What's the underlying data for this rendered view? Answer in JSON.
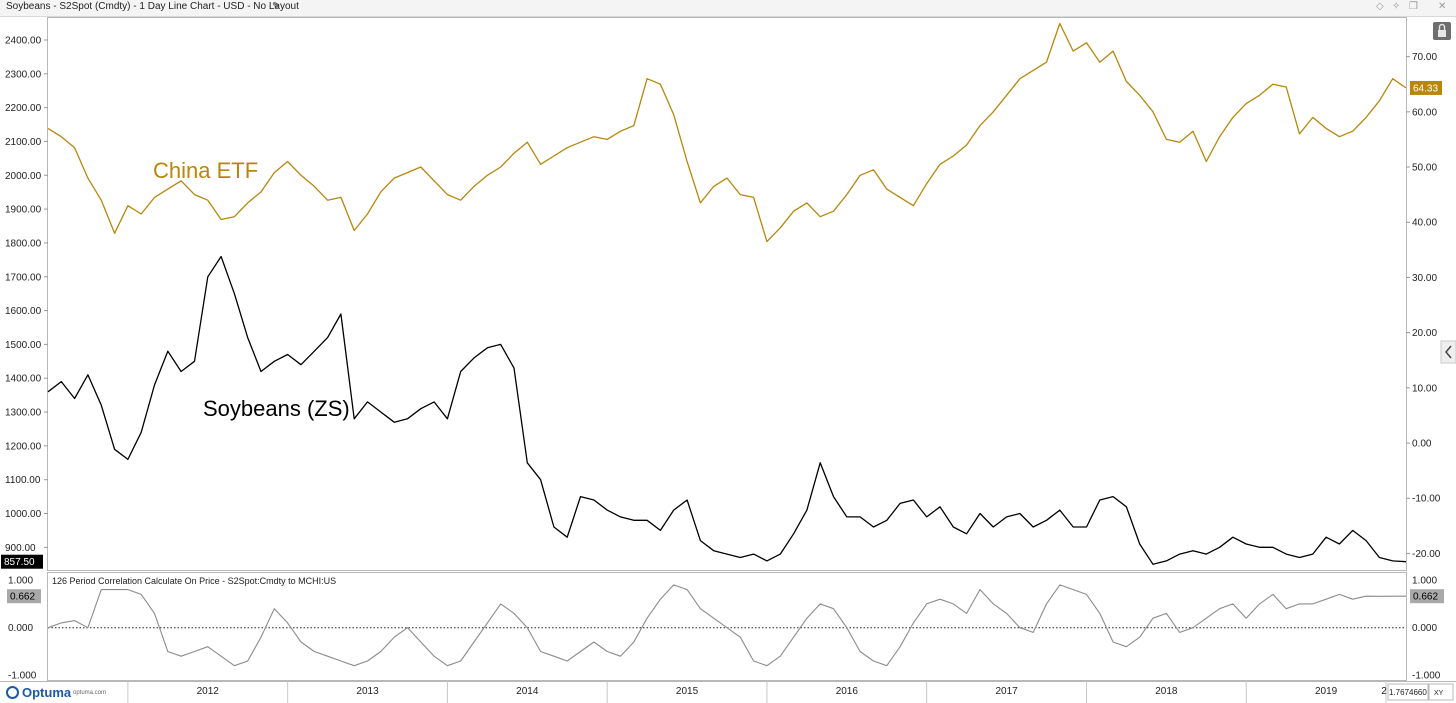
{
  "window": {
    "title": "Soybeans - S2Spot (Cmdty) - 1 Day Line Chart - USD - No Layout"
  },
  "icons": {
    "edit": "pencil-icon",
    "controls": [
      "diamond-icon",
      "pin-icon",
      "restore-icon",
      "close-icon"
    ],
    "lock": "lock-icon",
    "collapse": "chevron-left-icon"
  },
  "brand": {
    "name": "Optuma",
    "url": "optuma.com"
  },
  "colors": {
    "china": "#b8860b",
    "soy": "#000000",
    "corr": "#8c8c8c",
    "corr_badge": "#a9a9a9"
  },
  "chart_data": [
    {
      "type": "line",
      "annotations": [
        "China ETF",
        "Soybeans (ZS)"
      ],
      "x_ticks": [
        "2012",
        "2013",
        "2014",
        "2015",
        "2016",
        "2017",
        "2018",
        "2019",
        "2"
      ],
      "left_axis": {
        "ticks": [
          "900.00",
          "1000.00",
          "1100.00",
          "1200.00",
          "1300.00",
          "1400.00",
          "1500.00",
          "1600.00",
          "1700.00",
          "1800.00",
          "1900.00",
          "2000.00",
          "2100.00",
          "2200.00",
          "2300.00",
          "2400.00"
        ],
        "range": [
          833,
          2465
        ]
      },
      "right_axis": {
        "ticks": [
          "-20.00",
          "-10.00",
          "0.00",
          "10.00",
          "20.00",
          "30.00",
          "40.00",
          "50.00",
          "60.00",
          "70.00"
        ],
        "range": [
          -23.0,
          77.0
        ]
      },
      "series": [
        {
          "name": "China ETF",
          "axis": "right",
          "last_value": "64.33",
          "x": [
            "2011-07",
            "2011-08",
            "2011-09",
            "2011-10",
            "2011-11",
            "2011-12",
            "2012-01",
            "2012-02",
            "2012-03",
            "2012-04",
            "2012-05",
            "2012-06",
            "2012-07",
            "2012-08",
            "2012-09",
            "2012-10",
            "2012-11",
            "2012-12",
            "2013-01",
            "2013-02",
            "2013-03",
            "2013-04",
            "2013-05",
            "2013-06",
            "2013-07",
            "2013-08",
            "2013-09",
            "2013-10",
            "2013-11",
            "2013-12",
            "2014-01",
            "2014-02",
            "2014-03",
            "2014-04",
            "2014-05",
            "2014-06",
            "2014-07",
            "2014-08",
            "2014-09",
            "2014-10",
            "2014-11",
            "2014-12",
            "2015-01",
            "2015-02",
            "2015-03",
            "2015-04",
            "2015-05",
            "2015-06",
            "2015-07",
            "2015-08",
            "2015-09",
            "2015-10",
            "2015-11",
            "2015-12",
            "2016-01",
            "2016-02",
            "2016-03",
            "2016-04",
            "2016-05",
            "2016-06",
            "2016-07",
            "2016-08",
            "2016-09",
            "2016-10",
            "2016-11",
            "2016-12",
            "2017-01",
            "2017-02",
            "2017-03",
            "2017-04",
            "2017-05",
            "2017-06",
            "2017-07",
            "2017-08",
            "2017-09",
            "2017-10",
            "2017-11",
            "2017-12",
            "2018-01",
            "2018-02",
            "2018-03",
            "2018-04",
            "2018-05",
            "2018-06",
            "2018-07",
            "2018-08",
            "2018-09",
            "2018-10",
            "2018-11",
            "2018-12",
            "2019-01",
            "2019-02",
            "2019-03",
            "2019-04",
            "2019-05",
            "2019-06",
            "2019-07",
            "2019-08",
            "2019-09",
            "2019-10",
            "2019-11",
            "2019-12",
            "2020-01"
          ],
          "values": [
            57.0,
            55.5,
            53.5,
            48.0,
            44.0,
            38.0,
            43.0,
            41.5,
            44.5,
            46.0,
            47.5,
            45.0,
            44.0,
            40.5,
            41.0,
            43.5,
            45.5,
            49.0,
            51.0,
            48.5,
            46.5,
            44.0,
            44.5,
            38.5,
            41.5,
            45.5,
            48.0,
            49.0,
            50.0,
            47.5,
            45.0,
            44.0,
            46.5,
            48.5,
            50.0,
            52.5,
            54.5,
            50.5,
            52.0,
            53.5,
            54.5,
            55.5,
            55.0,
            56.5,
            57.5,
            66.0,
            65.0,
            59.5,
            51.0,
            43.5,
            46.5,
            48.0,
            45.0,
            44.5,
            36.5,
            39.0,
            42.0,
            43.5,
            41.0,
            42.0,
            45.0,
            48.5,
            49.5,
            46.0,
            44.5,
            43.0,
            47.0,
            50.5,
            52.0,
            54.0,
            57.5,
            60.0,
            63.0,
            66.0,
            67.5,
            69.0,
            76.0,
            71.0,
            72.5,
            69.0,
            71.0,
            65.5,
            63.0,
            60.0,
            55.0,
            54.5,
            56.5,
            51.0,
            55.5,
            59.0,
            61.5,
            63.0,
            65.0,
            64.5,
            56.0,
            59.0,
            57.0,
            55.5,
            56.5,
            59.0,
            62.0,
            66.0,
            64.33
          ]
        },
        {
          "name": "Soybeans (ZS)",
          "axis": "left",
          "last_value": "857.50",
          "x": [
            "2011-07",
            "2011-08",
            "2011-09",
            "2011-10",
            "2011-11",
            "2011-12",
            "2012-01",
            "2012-02",
            "2012-03",
            "2012-04",
            "2012-05",
            "2012-06",
            "2012-07",
            "2012-08",
            "2012-09",
            "2012-10",
            "2012-11",
            "2012-12",
            "2013-01",
            "2013-02",
            "2013-03",
            "2013-04",
            "2013-05",
            "2013-06",
            "2013-07",
            "2013-08",
            "2013-09",
            "2013-10",
            "2013-11",
            "2013-12",
            "2014-01",
            "2014-02",
            "2014-03",
            "2014-04",
            "2014-05",
            "2014-06",
            "2014-07",
            "2014-08",
            "2014-09",
            "2014-10",
            "2014-11",
            "2014-12",
            "2015-01",
            "2015-02",
            "2015-03",
            "2015-04",
            "2015-05",
            "2015-06",
            "2015-07",
            "2015-08",
            "2015-09",
            "2015-10",
            "2015-11",
            "2015-12",
            "2016-01",
            "2016-02",
            "2016-03",
            "2016-04",
            "2016-05",
            "2016-06",
            "2016-07",
            "2016-08",
            "2016-09",
            "2016-10",
            "2016-11",
            "2016-12",
            "2017-01",
            "2017-02",
            "2017-03",
            "2017-04",
            "2017-05",
            "2017-06",
            "2017-07",
            "2017-08",
            "2017-09",
            "2017-10",
            "2017-11",
            "2017-12",
            "2018-01",
            "2018-02",
            "2018-03",
            "2018-04",
            "2018-05",
            "2018-06",
            "2018-07",
            "2018-08",
            "2018-09",
            "2018-10",
            "2018-11",
            "2018-12",
            "2019-01",
            "2019-02",
            "2019-03",
            "2019-04",
            "2019-05",
            "2019-06",
            "2019-07",
            "2019-08",
            "2019-09",
            "2019-10",
            "2019-11",
            "2019-12",
            "2020-01"
          ],
          "values": [
            1360,
            1390,
            1340,
            1410,
            1320,
            1190,
            1160,
            1240,
            1380,
            1480,
            1420,
            1450,
            1700,
            1760,
            1650,
            1520,
            1420,
            1450,
            1470,
            1440,
            1480,
            1520,
            1590,
            1280,
            1330,
            1300,
            1270,
            1280,
            1310,
            1330,
            1280,
            1420,
            1460,
            1490,
            1500,
            1430,
            1150,
            1100,
            960,
            930,
            1050,
            1040,
            1010,
            990,
            980,
            980,
            950,
            1010,
            1040,
            920,
            890,
            880,
            870,
            880,
            860,
            880,
            940,
            1010,
            1150,
            1050,
            990,
            990,
            960,
            980,
            1030,
            1040,
            990,
            1020,
            960,
            940,
            1000,
            960,
            990,
            1000,
            960,
            980,
            1010,
            960,
            960,
            1040,
            1050,
            1020,
            910,
            850,
            860,
            880,
            890,
            880,
            900,
            930,
            910,
            900,
            900,
            880,
            870,
            880,
            930,
            910,
            950,
            920,
            870,
            860,
            857.5
          ]
        }
      ]
    },
    {
      "type": "line",
      "title": "126 Period Correlation Calculate On Price - S2Spot:Cmdty to MCHI:US",
      "x_ticks": [
        "2012",
        "2013",
        "2014",
        "2015",
        "2016",
        "2017",
        "2018",
        "2019",
        "2"
      ],
      "y_ticks": [
        "1.000",
        "0.000",
        "-1.000"
      ],
      "ylim": [
        -1.1,
        1.15
      ],
      "zero_line": "dotted",
      "series": [
        {
          "name": "Correlation",
          "last_value": "0.662",
          "x": [
            "2011-07",
            "2011-08",
            "2011-09",
            "2011-10",
            "2011-11",
            "2011-12",
            "2012-01",
            "2012-02",
            "2012-03",
            "2012-04",
            "2012-05",
            "2012-06",
            "2012-07",
            "2012-08",
            "2012-09",
            "2012-10",
            "2012-11",
            "2012-12",
            "2013-01",
            "2013-02",
            "2013-03",
            "2013-04",
            "2013-05",
            "2013-06",
            "2013-07",
            "2013-08",
            "2013-09",
            "2013-10",
            "2013-11",
            "2013-12",
            "2014-01",
            "2014-02",
            "2014-03",
            "2014-04",
            "2014-05",
            "2014-06",
            "2014-07",
            "2014-08",
            "2014-09",
            "2014-10",
            "2014-11",
            "2014-12",
            "2015-01",
            "2015-02",
            "2015-03",
            "2015-04",
            "2015-05",
            "2015-06",
            "2015-07",
            "2015-08",
            "2015-09",
            "2015-10",
            "2015-11",
            "2015-12",
            "2016-01",
            "2016-02",
            "2016-03",
            "2016-04",
            "2016-05",
            "2016-06",
            "2016-07",
            "2016-08",
            "2016-09",
            "2016-10",
            "2016-11",
            "2016-12",
            "2017-01",
            "2017-02",
            "2017-03",
            "2017-04",
            "2017-05",
            "2017-06",
            "2017-07",
            "2017-08",
            "2017-09",
            "2017-10",
            "2017-11",
            "2017-12",
            "2018-01",
            "2018-02",
            "2018-03",
            "2018-04",
            "2018-05",
            "2018-06",
            "2018-07",
            "2018-08",
            "2018-09",
            "2018-10",
            "2018-11",
            "2018-12",
            "2019-01",
            "2019-02",
            "2019-03",
            "2019-04",
            "2019-05",
            "2019-06",
            "2019-07",
            "2019-08",
            "2019-09",
            "2019-10",
            "2019-11",
            "2019-12",
            "2020-01"
          ],
          "values": [
            0.0,
            0.1,
            0.15,
            0.0,
            0.8,
            0.8,
            0.8,
            0.7,
            0.3,
            -0.5,
            -0.6,
            -0.5,
            -0.4,
            -0.6,
            -0.8,
            -0.7,
            -0.2,
            0.4,
            0.1,
            -0.3,
            -0.5,
            -0.6,
            -0.7,
            -0.8,
            -0.7,
            -0.5,
            -0.2,
            0.0,
            -0.3,
            -0.6,
            -0.8,
            -0.7,
            -0.3,
            0.1,
            0.5,
            0.3,
            0.0,
            -0.5,
            -0.6,
            -0.7,
            -0.5,
            -0.3,
            -0.5,
            -0.6,
            -0.3,
            0.2,
            0.6,
            0.9,
            0.8,
            0.4,
            0.2,
            0.0,
            -0.2,
            -0.7,
            -0.8,
            -0.6,
            -0.2,
            0.2,
            0.5,
            0.4,
            0.0,
            -0.5,
            -0.7,
            -0.8,
            -0.4,
            0.1,
            0.5,
            0.6,
            0.5,
            0.3,
            0.8,
            0.5,
            0.3,
            0.0,
            -0.1,
            0.5,
            0.9,
            0.8,
            0.7,
            0.3,
            -0.3,
            -0.4,
            -0.2,
            0.2,
            0.3,
            -0.1,
            0.0,
            0.2,
            0.4,
            0.5,
            0.2,
            0.5,
            0.7,
            0.4,
            0.5,
            0.5,
            0.6,
            0.7,
            0.6,
            0.662,
            0.66,
            0.662,
            0.662
          ]
        }
      ]
    }
  ],
  "crosshair_readout": "1.7674660",
  "xy_label": "XY"
}
